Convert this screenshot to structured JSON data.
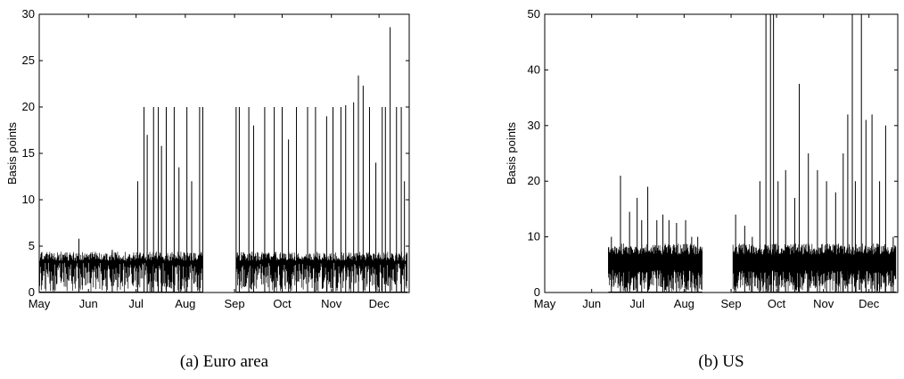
{
  "chart_data": [
    {
      "type": "line",
      "caption": "(a) Euro area",
      "xlabel": "",
      "ylabel": "Basis points",
      "ylim": [
        0,
        30
      ],
      "yticks": [
        0,
        5,
        10,
        15,
        20,
        25,
        30
      ],
      "xticks": [
        "May",
        "Jun",
        "Jul",
        "Aug",
        "Sep",
        "Oct",
        "Nov",
        "Dec"
      ],
      "xdomain": [
        "2008-05-01",
        "2008-12-20"
      ],
      "baseline_level": 4,
      "gap": [
        "2008-08-12",
        "2008-09-02"
      ],
      "series": [
        {
          "x": [
            "2008-05-26",
            "2008-06-16",
            "2008-07-02",
            "2008-07-06",
            "2008-07-08",
            "2008-07-12",
            "2008-07-15",
            "2008-07-17",
            "2008-07-20",
            "2008-07-25",
            "2008-07-28",
            "2008-08-02",
            "2008-08-05",
            "2008-08-10",
            "2008-08-12",
            "2008-09-02",
            "2008-09-04",
            "2008-09-10",
            "2008-09-13",
            "2008-09-20",
            "2008-09-26",
            "2008-10-01",
            "2008-10-05",
            "2008-10-10",
            "2008-10-17",
            "2008-10-22",
            "2008-10-29",
            "2008-11-02",
            "2008-11-07",
            "2008-11-10",
            "2008-11-15",
            "2008-11-18",
            "2008-11-21",
            "2008-11-25",
            "2008-11-29",
            "2008-12-03",
            "2008-12-05",
            "2008-12-08",
            "2008-12-12",
            "2008-12-15",
            "2008-12-17"
          ],
          "y": [
            5.8,
            4.6,
            12.0,
            20.0,
            17.0,
            20.0,
            20.0,
            15.8,
            20.0,
            20.0,
            13.5,
            20.0,
            12.0,
            20.0,
            20.0,
            20.0,
            20.0,
            20.0,
            18.0,
            20.0,
            20.0,
            20.0,
            16.5,
            20.0,
            20.0,
            20.0,
            19.0,
            20.0,
            20.0,
            20.2,
            20.5,
            23.4,
            22.3,
            20.0,
            14.0,
            20.0,
            20.0,
            28.6,
            20.0,
            20.0,
            12.0
          ]
        }
      ]
    },
    {
      "type": "line",
      "caption": "(b) US",
      "xlabel": "",
      "ylabel": "Basis points",
      "ylim": [
        0,
        50
      ],
      "yticks": [
        0,
        10,
        20,
        30,
        40,
        50
      ],
      "xticks": [
        "May",
        "Jun",
        "Jul",
        "Aug",
        "Sep",
        "Oct",
        "Nov",
        "Dec"
      ],
      "xdomain": [
        "2008-05-01",
        "2008-12-20"
      ],
      "baseline_level": 8,
      "data_start": "2008-06-12",
      "gap": [
        "2008-08-13",
        "2008-09-02"
      ],
      "series": [
        {
          "x": [
            "2008-06-14",
            "2008-06-20",
            "2008-06-26",
            "2008-07-01",
            "2008-07-04",
            "2008-07-08",
            "2008-07-14",
            "2008-07-18",
            "2008-07-22",
            "2008-07-27",
            "2008-08-02",
            "2008-08-06",
            "2008-08-10",
            "2008-09-04",
            "2008-09-10",
            "2008-09-15",
            "2008-09-20",
            "2008-09-24",
            "2008-09-27",
            "2008-09-29",
            "2008-10-02",
            "2008-10-07",
            "2008-10-13",
            "2008-10-16",
            "2008-10-22",
            "2008-10-28",
            "2008-11-03",
            "2008-11-09",
            "2008-11-14",
            "2008-11-17",
            "2008-11-20",
            "2008-11-22",
            "2008-11-26",
            "2008-11-29",
            "2008-12-03",
            "2008-12-08",
            "2008-12-12",
            "2008-12-17"
          ],
          "y": [
            10.0,
            21.0,
            14.5,
            17.0,
            13.0,
            19.0,
            13.0,
            14.0,
            13.0,
            12.5,
            13.0,
            10.0,
            10.0,
            14.0,
            12.0,
            10.0,
            20.0,
            50.0,
            50.0,
            50.0,
            20.0,
            22.0,
            17.0,
            37.5,
            25.0,
            22.0,
            20.0,
            18.0,
            25.0,
            32.0,
            50.0,
            20.0,
            50.0,
            31.0,
            32.0,
            20.0,
            30.0,
            10.0
          ]
        }
      ]
    }
  ]
}
